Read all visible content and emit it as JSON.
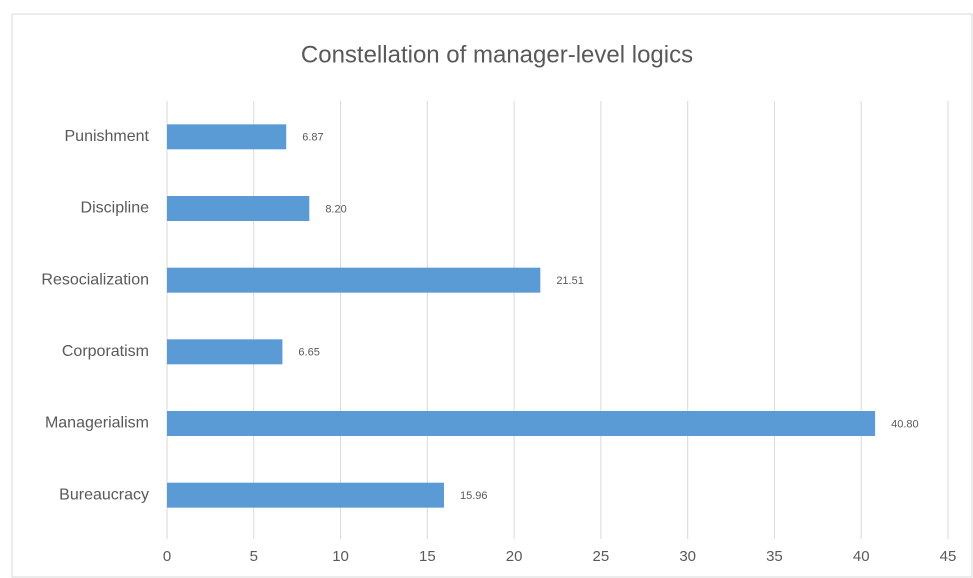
{
  "chart_data": {
    "type": "barh",
    "title": "Constellation of manager-level logics",
    "categories": [
      "Punishment",
      "Discipline",
      "Resocialization",
      "Corporatism",
      "Managerialism",
      "Bureaucracy"
    ],
    "values": [
      6.87,
      8.2,
      21.51,
      6.65,
      40.8,
      15.96
    ],
    "value_labels": [
      "6.87",
      "8.20",
      "21.51",
      "6.65",
      "40.80",
      "15.96"
    ],
    "color": "#5b9bd5",
    "xlim": [
      0,
      45
    ],
    "xticks": [
      0,
      5,
      10,
      15,
      20,
      25,
      30,
      35,
      40,
      45
    ],
    "grid": true
  }
}
